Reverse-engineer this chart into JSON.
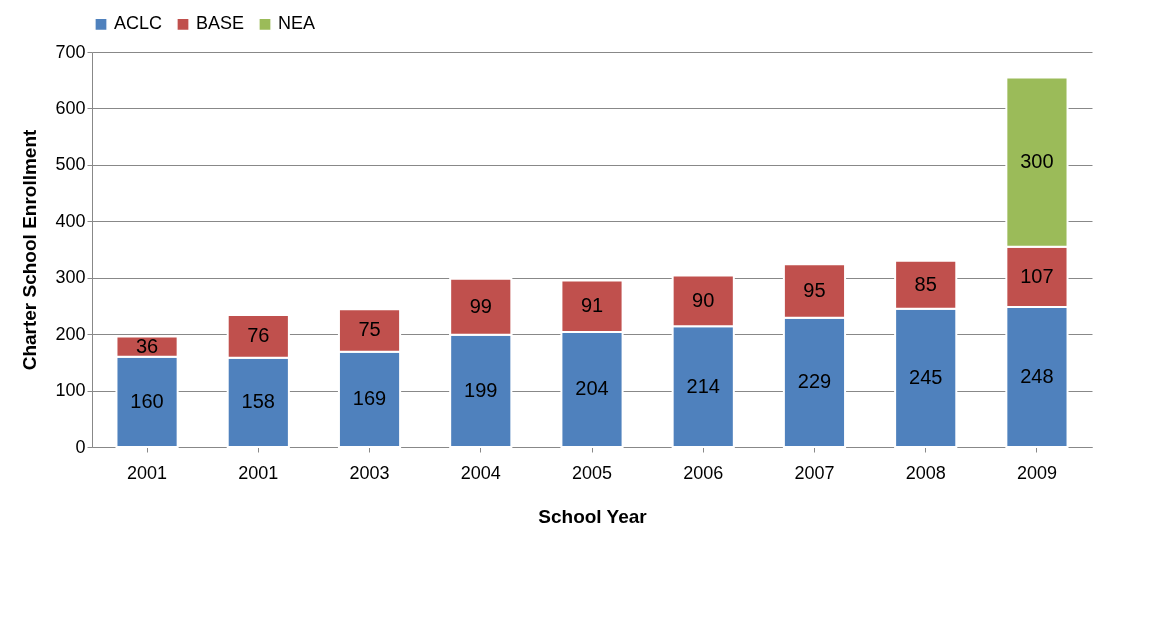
{
  "chart_data": {
    "type": "bar",
    "stacked": true,
    "xlabel": "School Year",
    "ylabel": "Charter School Enrollment",
    "categories": [
      "2001",
      "2001",
      "2003",
      "2004",
      "2005",
      "2006",
      "2007",
      "2008",
      "2009"
    ],
    "series": [
      {
        "name": "ACLC",
        "color": "#4f81bd",
        "values": [
          160,
          158,
          169,
          199,
          204,
          214,
          229,
          245,
          248
        ]
      },
      {
        "name": "BASE",
        "color": "#c0504d",
        "values": [
          36,
          76,
          75,
          99,
          91,
          90,
          95,
          85,
          107
        ]
      },
      {
        "name": "NEA",
        "color": "#9bbb59",
        "values": [
          null,
          null,
          null,
          null,
          null,
          null,
          null,
          null,
          300
        ]
      }
    ],
    "ylim": [
      0,
      700
    ],
    "yticks": [
      0,
      100,
      200,
      300,
      400,
      500,
      600,
      700
    ],
    "grid": "y",
    "legend": "top",
    "data_labels": true
  }
}
